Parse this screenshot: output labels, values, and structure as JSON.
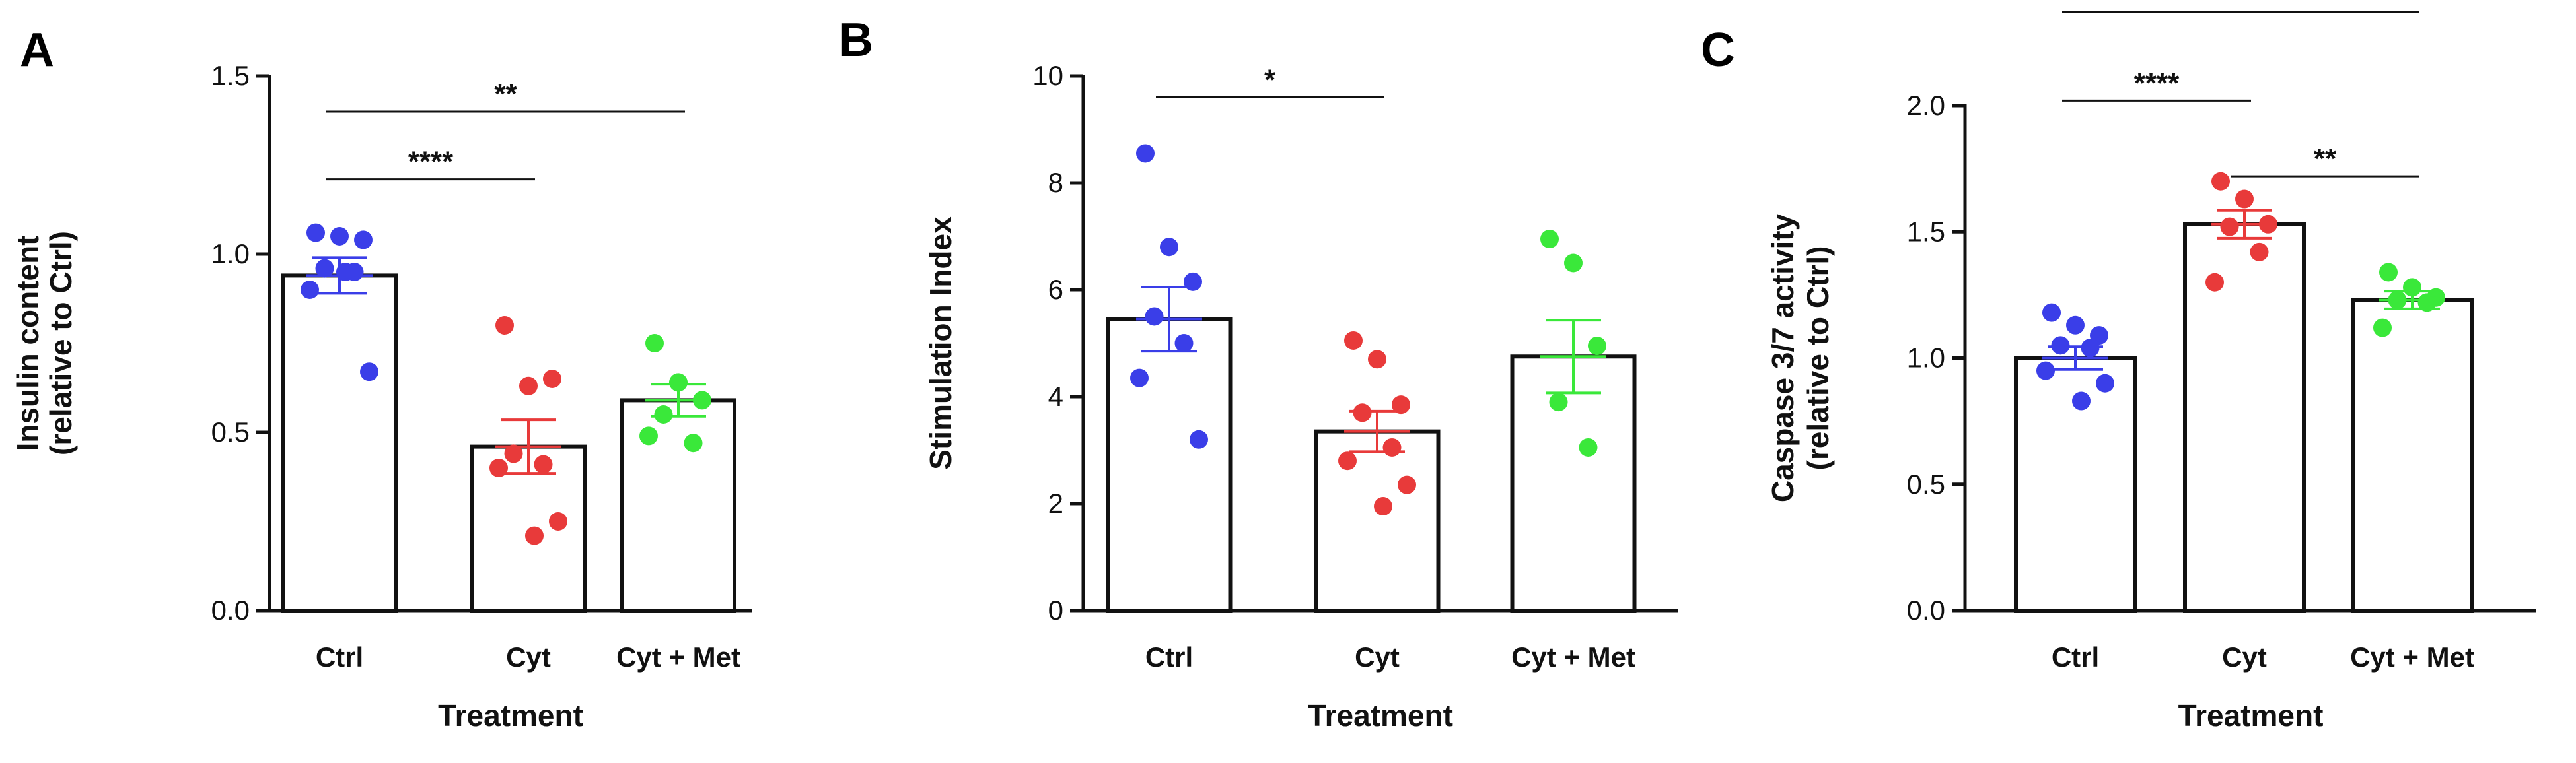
{
  "chart_data": [
    {
      "panel": "A",
      "type": "bar",
      "categories": [
        "Ctrl",
        "Cyt",
        "Cyt + Met"
      ],
      "xlabel": "Treatment",
      "ylabel": [
        "Insulin content",
        "(relative to Ctrl)"
      ],
      "ylim": [
        0,
        1.5
      ],
      "yticks": [
        "0.0",
        "0.5",
        "1.0",
        "1.5"
      ],
      "series": [
        {
          "values": [
            0.94,
            0.46,
            0.59
          ],
          "sem": [
            0.05,
            0.075,
            0.045
          ]
        }
      ],
      "points": [
        [
          1.06,
          1.05,
          1.04,
          0.96,
          0.95,
          0.9,
          0.67,
          0.95
        ],
        [
          0.8,
          0.63,
          0.65,
          0.44,
          0.41,
          0.4,
          0.25,
          0.21
        ],
        [
          0.75,
          0.64,
          0.59,
          0.55,
          0.47,
          0.49
        ]
      ],
      "colors": [
        "#3a3ee8",
        "#e83a3a",
        "#3ae83a"
      ],
      "significance": [
        {
          "from": 0,
          "to": 1,
          "y": 1.21,
          "label": "****"
        },
        {
          "from": 0,
          "to": 2,
          "y": 1.4,
          "label": "**"
        }
      ]
    },
    {
      "panel": "B",
      "type": "bar",
      "categories": [
        "Ctrl",
        "Cyt",
        "Cyt + Met"
      ],
      "xlabel": "Treatment",
      "ylabel": [
        "Stimulation Index"
      ],
      "ylim": [
        0,
        10
      ],
      "yticks": [
        "0",
        "2",
        "4",
        "6",
        "8",
        "10"
      ],
      "series": [
        {
          "values": [
            5.45,
            3.35,
            4.75
          ],
          "sem": [
            0.6,
            0.38,
            0.68
          ]
        }
      ],
      "points": [
        [
          8.55,
          6.8,
          6.15,
          5.5,
          5.0,
          4.35,
          3.2
        ],
        [
          5.05,
          4.7,
          3.85,
          3.7,
          3.05,
          2.8,
          2.35,
          1.95
        ],
        [
          6.95,
          6.5,
          4.95,
          3.9,
          3.05
        ]
      ],
      "colors": [
        "#3a3ee8",
        "#e83a3a",
        "#3ae83a"
      ],
      "significance": [
        {
          "from": 0,
          "to": 1,
          "y": 9.6,
          "label": "*"
        }
      ]
    },
    {
      "panel": "C",
      "type": "bar",
      "categories": [
        "Ctrl",
        "Cyt",
        "Cyt + Met"
      ],
      "xlabel": "Treatment",
      "ylabel": [
        "Caspase 3/7 activity",
        "(relative to Ctrl)"
      ],
      "ylim": [
        0,
        2.0
      ],
      "yticks": [
        "0.0",
        "0.5",
        "1.0",
        "1.5",
        "2.0"
      ],
      "series": [
        {
          "values": [
            1.0,
            1.53,
            1.23
          ],
          "sem": [
            0.045,
            0.055,
            0.035
          ]
        }
      ],
      "points": [
        [
          1.18,
          1.13,
          1.09,
          1.05,
          1.04,
          0.95,
          0.9,
          0.83
        ],
        [
          1.7,
          1.63,
          1.53,
          1.52,
          1.42,
          1.3
        ],
        [
          1.34,
          1.28,
          1.24,
          1.23,
          1.22,
          1.12
        ]
      ],
      "colors": [
        "#3a3ee8",
        "#e83a3a",
        "#3ae83a"
      ],
      "significance": [
        {
          "from": 0,
          "to": 1,
          "y": 2.02,
          "label": "****"
        },
        {
          "from": 1,
          "to": 2,
          "y": 1.72,
          "label": "**"
        },
        {
          "from": 0,
          "to": 2,
          "y": 2.37,
          "label": "**"
        }
      ]
    }
  ]
}
